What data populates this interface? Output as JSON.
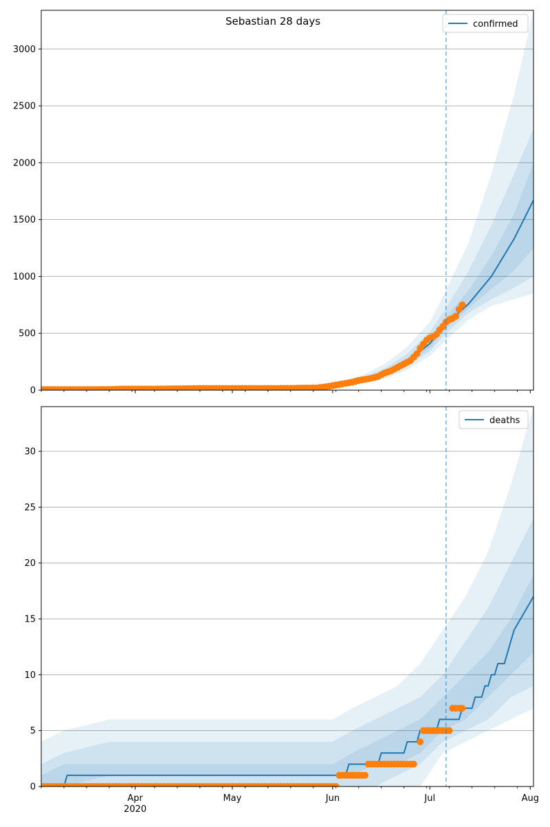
{
  "figure": {
    "title": "Sebastian 28 days",
    "colors": {
      "line": "#1f77b4",
      "observed": "#ff7f0e",
      "band": "#1f77b4",
      "grid": "#b0b0b0",
      "vline": "#1f77b4"
    }
  },
  "chart_data": [
    {
      "type": "line",
      "name": "confirmed-panel",
      "legend": {
        "label": "confirmed",
        "position": "top-right"
      },
      "x_axis": {
        "type": "date",
        "range": [
          "2020-03-03",
          "2020-08-02"
        ],
        "major_ticks": [
          {
            "date": "2020-04-01",
            "label": "Apr",
            "sublabel": ""
          },
          {
            "date": "2020-05-01",
            "label": "May",
            "sublabel": ""
          },
          {
            "date": "2020-06-01",
            "label": "Jun",
            "sublabel": ""
          },
          {
            "date": "2020-07-01",
            "label": "Jul",
            "sublabel": ""
          },
          {
            "date": "2020-08-01",
            "label": "Aug",
            "sublabel": ""
          }
        ],
        "show_labels": false
      },
      "y_axis": {
        "range": [
          0,
          3340
        ],
        "ticks": [
          0,
          500,
          1000,
          1500,
          2000,
          2500,
          3000
        ],
        "grid": true
      },
      "forecast_start": "2020-07-06",
      "observed": [
        [
          "2020-03-03",
          5
        ],
        [
          "2020-03-10",
          5
        ],
        [
          "2020-03-17",
          5
        ],
        [
          "2020-03-24",
          6
        ],
        [
          "2020-03-28",
          10
        ],
        [
          "2020-04-07",
          10
        ],
        [
          "2020-04-14",
          12
        ],
        [
          "2020-04-21",
          15
        ],
        [
          "2020-04-28",
          15
        ],
        [
          "2020-05-05",
          15
        ],
        [
          "2020-05-12",
          15
        ],
        [
          "2020-05-19",
          16
        ],
        [
          "2020-05-22",
          18
        ],
        [
          "2020-05-27",
          20
        ],
        [
          "2020-05-30",
          30
        ],
        [
          "2020-06-01",
          40
        ],
        [
          "2020-06-03",
          50
        ],
        [
          "2020-06-05",
          60
        ],
        [
          "2020-06-07",
          70
        ],
        [
          "2020-06-09",
          85
        ],
        [
          "2020-06-11",
          95
        ],
        [
          "2020-06-13",
          105
        ],
        [
          "2020-06-15",
          120
        ],
        [
          "2020-06-17",
          150
        ],
        [
          "2020-06-19",
          170
        ],
        [
          "2020-06-21",
          200
        ],
        [
          "2020-06-23",
          230
        ],
        [
          "2020-06-25",
          260
        ],
        [
          "2020-06-27",
          320
        ],
        [
          "2020-06-28",
          370
        ],
        [
          "2020-06-30",
          440
        ],
        [
          "2020-07-01",
          460
        ],
        [
          "2020-07-02",
          470
        ],
        [
          "2020-07-03",
          490
        ],
        [
          "2020-07-04",
          530
        ],
        [
          "2020-07-05",
          560
        ],
        [
          "2020-07-06",
          600
        ],
        [
          "2020-07-07",
          620
        ],
        [
          "2020-07-08",
          630
        ],
        [
          "2020-07-09",
          650
        ],
        [
          "2020-07-10",
          710
        ],
        [
          "2020-07-11",
          750
        ]
      ],
      "median": [
        [
          "2020-03-03",
          5
        ],
        [
          "2020-05-20",
          15
        ],
        [
          "2020-05-27",
          20
        ],
        [
          "2020-06-03",
          45
        ],
        [
          "2020-06-10",
          90
        ],
        [
          "2020-06-17",
          150
        ],
        [
          "2020-06-24",
          250
        ],
        [
          "2020-07-01",
          410
        ],
        [
          "2020-07-06",
          580
        ],
        [
          "2020-07-13",
          760
        ],
        [
          "2020-07-20",
          1000
        ],
        [
          "2020-07-27",
          1330
        ],
        [
          "2020-08-02",
          1670
        ]
      ],
      "bands": [
        {
          "x": [
            "2020-05-20",
            "2020-05-27",
            "2020-06-03",
            "2020-06-10",
            "2020-06-17",
            "2020-06-24",
            "2020-07-01",
            "2020-07-06",
            "2020-07-13",
            "2020-07-20",
            "2020-07-27",
            "2020-08-02"
          ],
          "low": [
            10,
            10,
            25,
            60,
            100,
            180,
            300,
            440,
            620,
            740,
            800,
            850
          ],
          "high": [
            25,
            40,
            70,
            130,
            230,
            380,
            600,
            880,
            1300,
            1900,
            2600,
            3340
          ]
        },
        {
          "x": [
            "2020-05-20",
            "2020-05-27",
            "2020-06-03",
            "2020-06-10",
            "2020-06-17",
            "2020-06-24",
            "2020-07-01",
            "2020-07-06",
            "2020-07-13",
            "2020-07-20",
            "2020-07-27",
            "2020-08-02"
          ],
          "low": [
            12,
            14,
            32,
            70,
            120,
            210,
            340,
            500,
            680,
            800,
            900,
            1000
          ],
          "high": [
            20,
            30,
            60,
            110,
            190,
            320,
            510,
            720,
            1050,
            1450,
            1900,
            2300
          ]
        },
        {
          "x": [
            "2020-05-20",
            "2020-05-27",
            "2020-06-03",
            "2020-06-10",
            "2020-06-17",
            "2020-06-24",
            "2020-07-01",
            "2020-07-06",
            "2020-07-13",
            "2020-07-20",
            "2020-07-27",
            "2020-08-02"
          ],
          "low": [
            13,
            17,
            38,
            80,
            135,
            230,
            370,
            540,
            720,
            890,
            1050,
            1250
          ],
          "high": [
            18,
            25,
            52,
            100,
            170,
            280,
            460,
            640,
            880,
            1180,
            1550,
            2000
          ]
        }
      ]
    },
    {
      "type": "line",
      "name": "deaths-panel",
      "legend": {
        "label": "deaths",
        "position": "top-right"
      },
      "x_axis": {
        "type": "date",
        "range": [
          "2020-03-03",
          "2020-08-02"
        ],
        "major_ticks": [
          {
            "date": "2020-04-01",
            "label": "Apr",
            "sublabel": "2020"
          },
          {
            "date": "2020-05-01",
            "label": "May",
            "sublabel": ""
          },
          {
            "date": "2020-06-01",
            "label": "Jun",
            "sublabel": ""
          },
          {
            "date": "2020-07-01",
            "label": "Jul",
            "sublabel": ""
          },
          {
            "date": "2020-08-01",
            "label": "Aug",
            "sublabel": ""
          }
        ],
        "show_labels": true
      },
      "y_axis": {
        "range": [
          0,
          34
        ],
        "ticks": [
          0,
          5,
          10,
          15,
          20,
          25,
          30
        ],
        "grid": true
      },
      "forecast_start": "2020-07-06",
      "observed_runs": [
        {
          "start": "2020-03-03",
          "end": "2020-06-02",
          "value": 0
        },
        {
          "start": "2020-06-03",
          "end": "2020-06-11",
          "value": 1
        },
        {
          "start": "2020-06-12",
          "end": "2020-06-26",
          "value": 2
        },
        {
          "start": "2020-06-28",
          "end": "2020-06-28",
          "value": 4
        },
        {
          "start": "2020-06-29",
          "end": "2020-07-07",
          "value": 5
        },
        {
          "start": "2020-07-08",
          "end": "2020-07-11",
          "value": 7
        }
      ],
      "median": [
        [
          "2020-03-03",
          0
        ],
        [
          "2020-03-10",
          0
        ],
        [
          "2020-03-11",
          1
        ],
        [
          "2020-06-05",
          1
        ],
        [
          "2020-06-06",
          2
        ],
        [
          "2020-06-15",
          2
        ],
        [
          "2020-06-16",
          3
        ],
        [
          "2020-06-23",
          3
        ],
        [
          "2020-06-24",
          4
        ],
        [
          "2020-06-27",
          4
        ],
        [
          "2020-06-28",
          5
        ],
        [
          "2020-07-03",
          5
        ],
        [
          "2020-07-04",
          6
        ],
        [
          "2020-07-10",
          6
        ],
        [
          "2020-07-11",
          7
        ],
        [
          "2020-07-14",
          7
        ],
        [
          "2020-07-15",
          8
        ],
        [
          "2020-07-17",
          8
        ],
        [
          "2020-07-18",
          9
        ],
        [
          "2020-07-19",
          9
        ],
        [
          "2020-07-20",
          10
        ],
        [
          "2020-07-21",
          10
        ],
        [
          "2020-07-22",
          11
        ],
        [
          "2020-07-24",
          11
        ],
        [
          "2020-07-25",
          12
        ],
        [
          "2020-07-26",
          13
        ],
        [
          "2020-07-27",
          14
        ],
        [
          "2020-07-29",
          15
        ],
        [
          "2020-07-31",
          16
        ],
        [
          "2020-08-02",
          17
        ]
      ],
      "bands": [
        {
          "x": [
            "2020-03-03",
            "2020-03-10",
            "2020-03-24",
            "2020-06-01",
            "2020-06-07",
            "2020-06-14",
            "2020-06-21",
            "2020-06-28",
            "2020-07-05",
            "2020-07-12",
            "2020-07-19",
            "2020-07-26",
            "2020-08-02"
          ],
          "low": [
            0,
            0,
            0,
            0,
            0,
            0,
            0,
            0,
            3,
            4,
            5,
            6,
            7
          ],
          "high": [
            4,
            5,
            6,
            6,
            7,
            8,
            9,
            11,
            14,
            17,
            21,
            27,
            34
          ]
        },
        {
          "x": [
            "2020-03-03",
            "2020-03-10",
            "2020-03-24",
            "2020-06-01",
            "2020-06-07",
            "2020-06-14",
            "2020-06-21",
            "2020-06-28",
            "2020-07-05",
            "2020-07-12",
            "2020-07-19",
            "2020-07-26",
            "2020-08-02"
          ],
          "low": [
            0,
            0,
            0,
            0,
            0,
            0,
            1,
            2,
            4,
            5,
            6,
            8,
            9
          ],
          "high": [
            2,
            3,
            4,
            4,
            5,
            6,
            7,
            8,
            10,
            13,
            16,
            20,
            24
          ]
        },
        {
          "x": [
            "2020-03-03",
            "2020-03-10",
            "2020-03-24",
            "2020-06-01",
            "2020-06-07",
            "2020-06-14",
            "2020-06-21",
            "2020-06-28",
            "2020-07-05",
            "2020-07-12",
            "2020-07-19",
            "2020-07-26",
            "2020-08-02"
          ],
          "low": [
            0,
            0,
            1,
            1,
            1,
            2,
            2,
            3,
            5,
            6,
            8,
            10,
            12
          ],
          "high": [
            1,
            2,
            2,
            2,
            3,
            4,
            5,
            6,
            8,
            10,
            12,
            15,
            19
          ]
        }
      ]
    }
  ]
}
